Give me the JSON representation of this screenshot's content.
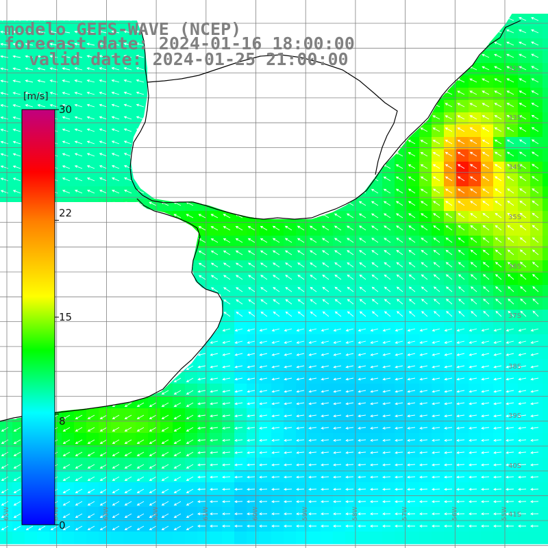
{
  "header": {
    "model_line": "modelo GEFS-WAVE (NCEP)",
    "forecast_line": "forecast date: 2024-01-16 18:00:00",
    "valid_line": "valid date: 2024-01-25 21:00:00"
  },
  "colorbar": {
    "unit": "[m/s]",
    "min": 0,
    "max": 30,
    "ticks": [
      "30",
      "22",
      "15",
      "8",
      "0"
    ],
    "tick_values": [
      30,
      22,
      15,
      8,
      0
    ],
    "colors": [
      "#0000ff",
      "#0080ff",
      "#00ffff",
      "#00ff00",
      "#ffff00",
      "#ff8000",
      "#ff0000",
      "#c0007f"
    ]
  },
  "map": {
    "variable": "wind speed",
    "lat_labels": [
      "32S",
      "33S",
      "34S",
      "35S",
      "36S",
      "37S",
      "38S",
      "39S",
      "40S",
      "41S"
    ],
    "lon_labels": [
      "65W",
      "64W",
      "63W",
      "62W",
      "61W",
      "60W",
      "59W",
      "58W",
      "57W",
      "56W",
      "55W"
    ],
    "land_color": "#ffffff",
    "grid_color": "#808080",
    "coast_color": "#000000",
    "arrow_color": "#ffffff"
  }
}
